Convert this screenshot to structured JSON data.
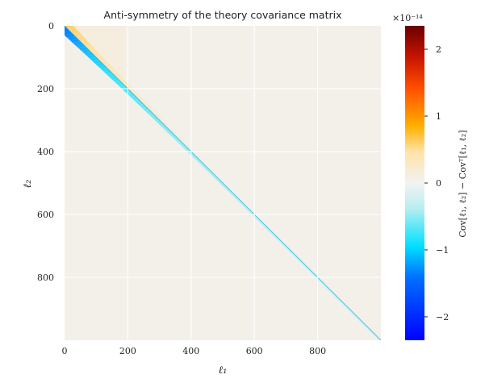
{
  "chart_data": {
    "type": "heatmap",
    "title": "Anti-symmetry of the theory covariance matrix",
    "xlabel": "ℓ₁",
    "ylabel": "ℓ₂",
    "x_range": [
      0,
      1000
    ],
    "y_range": [
      0,
      1000
    ],
    "y_inverted": true,
    "x_ticks": [
      0,
      200,
      400,
      600,
      800
    ],
    "y_ticks": [
      0,
      200,
      400,
      600,
      800
    ],
    "grid": true,
    "grid_color": "#ffffff",
    "background_value": 0.05,
    "diagonal": {
      "description_values": "below diagonal slightly negative, above diagonal slightly positive, strongest near ℓ small",
      "max_negative_near_origin": -1.4,
      "max_positive_near_origin": 0.6
    },
    "colorbar": {
      "label": "Cov[ℓ₁, ℓ₂] − Covᵀ[ℓ₁, ℓ₂]",
      "scale_label": "×10⁻¹⁴",
      "vmin": -2.35,
      "vmax": 2.35,
      "ticks": [
        -2,
        -1,
        0,
        1,
        2
      ],
      "tick_labels": [
        "−2",
        "−1",
        "0",
        "1",
        "2"
      ],
      "colors": {
        "min": "#0000ff",
        "low": "#00e0ff",
        "mid": "#f2f2f2",
        "high": "#ffb000",
        "higher": "#ff3000",
        "max": "#6a0000"
      }
    }
  }
}
